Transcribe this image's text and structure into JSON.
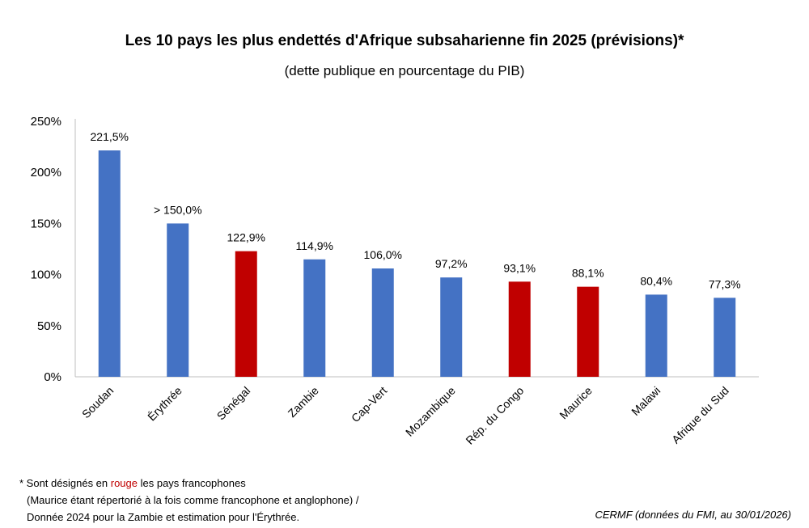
{
  "chart_data": {
    "type": "bar",
    "title": "Les 10 pays les plus endettés d'Afrique subsaharienne fin 2025 (prévisions)*",
    "subtitle": "(dette publique en pourcentage du PIB)",
    "categories": [
      "Soudan",
      "Érythrée",
      "Sénégal",
      "Zambie",
      "Cap-Vert",
      "Mozambique",
      "Rép. du Congo",
      "Maurice",
      "Malawi",
      "Afrique du Sud"
    ],
    "values": [
      221.5,
      150.0,
      122.9,
      114.9,
      106.0,
      97.2,
      93.1,
      88.1,
      80.4,
      77.3
    ],
    "data_labels": [
      "221,5%",
      "> 150,0%",
      "122,9%",
      "114,9%",
      "106,0%",
      "97,2%",
      "93,1%",
      "88,1%",
      "80,4%",
      "77,3%"
    ],
    "francophone": [
      false,
      false,
      true,
      false,
      false,
      false,
      true,
      true,
      false,
      false
    ],
    "colors": {
      "default": "#4472C4",
      "francophone": "#C00000",
      "axis": "#bfbfbf"
    },
    "ylim": [
      0,
      250
    ],
    "yticks": [
      0,
      50,
      100,
      150,
      200,
      250
    ],
    "ytick_labels": [
      "0%",
      "50%",
      "100%",
      "150%",
      "200%",
      "250%"
    ],
    "grid": false,
    "legend": "none",
    "xlabel": "",
    "ylabel": ""
  },
  "footnote": {
    "line1_prefix": "* Sont désignés en ",
    "line1_red": "rouge",
    "line1_suffix": " les pays francophones",
    "line2": "(Maurice étant répertorié à la fois comme francophone et anglophone) /",
    "line3": "Donnée 2024 pour la Zambie et estimation pour l'Érythrée."
  },
  "source": "CERMF (données du FMI, au 30/01/2026)"
}
